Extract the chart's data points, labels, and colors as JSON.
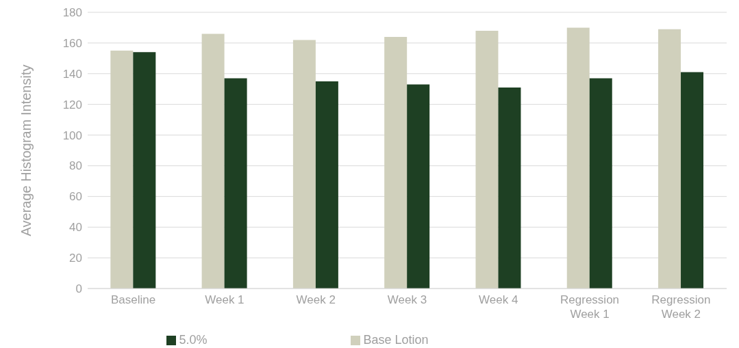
{
  "chart_data": {
    "type": "bar",
    "ylabel": "Average Histogram Intensity",
    "categories": [
      "Baseline",
      "Week 1",
      "Week 2",
      "Week 3",
      "Week 4",
      "Regression Week 1",
      "Regression Week 2"
    ],
    "series": [
      {
        "name": "Base Lotion",
        "color": "#d0d0bc",
        "values": [
          155,
          166,
          162,
          164,
          168,
          170,
          169
        ]
      },
      {
        "name": "5.0%",
        "color": "#1e4023",
        "values": [
          154,
          137,
          135,
          133,
          131,
          137,
          141
        ]
      }
    ],
    "ylim": [
      0,
      180
    ],
    "yticks": [
      0,
      20,
      40,
      60,
      80,
      100,
      120,
      140,
      160,
      180
    ],
    "grid": "y",
    "legend": "bottom"
  }
}
